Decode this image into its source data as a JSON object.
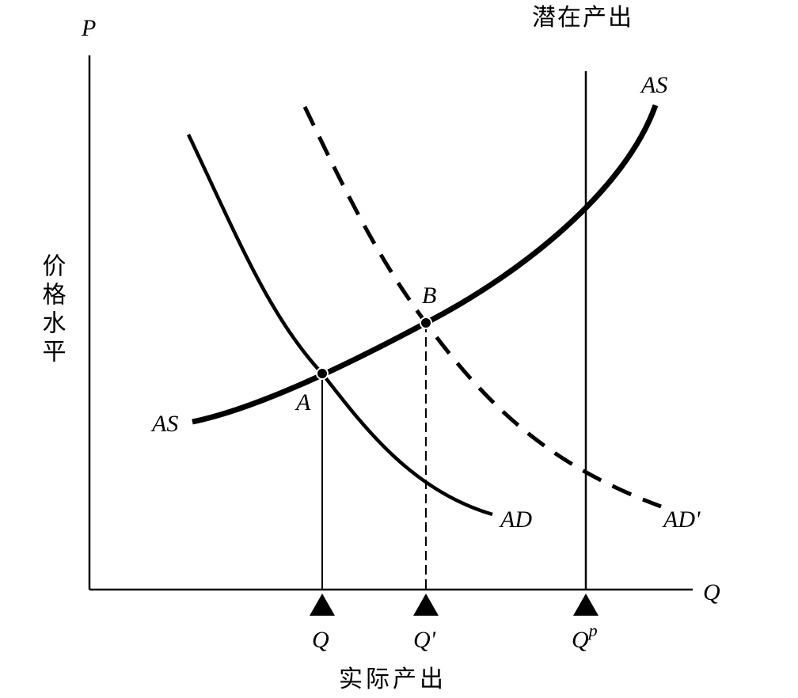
{
  "axes": {
    "y_symbol": "P",
    "x_symbol": "Q",
    "y_label": "价格水平",
    "x_label": "实际产出"
  },
  "potential_output_label": "潜在产出",
  "curves": {
    "as_left": "AS",
    "as_right": "AS",
    "ad": "AD",
    "ad_shifted": "AD'"
  },
  "points": {
    "a": "A",
    "b": "B"
  },
  "x_markers": [
    {
      "label": "Q"
    },
    {
      "label": "Q'"
    },
    {
      "label": "Q",
      "sup": "p"
    }
  ]
}
